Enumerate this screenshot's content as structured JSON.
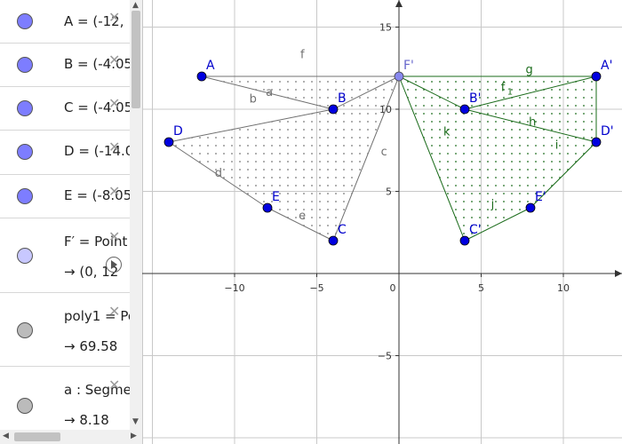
{
  "algebra": {
    "items": [
      {
        "name": "A",
        "text": "A = (-12,",
        "color": "#7d7dff",
        "kind": "point"
      },
      {
        "name": "B",
        "text": "B = (-4.05",
        "color": "#7d7dff",
        "kind": "point"
      },
      {
        "name": "C",
        "text": "C = (-4.05",
        "color": "#7d7dff",
        "kind": "point"
      },
      {
        "name": "D",
        "text": "D = (-14.0",
        "color": "#7d7dff",
        "kind": "point"
      },
      {
        "name": "E",
        "text": "E = (-8.05",
        "color": "#7d7dff",
        "kind": "point"
      },
      {
        "name": "F'",
        "text": "F′ = Point",
        "sub": "→  (0, 12",
        "color": "#c8c8ff",
        "kind": "dependent"
      },
      {
        "name": "poly1",
        "text": "poly1 = Po",
        "sub": "→  69.58",
        "color": "#bbbbbb",
        "kind": "dependent"
      },
      {
        "name": "a",
        "text": "a : Segmen",
        "sub": "→  8.18",
        "color": "#bbbbbb",
        "kind": "dependent"
      }
    ]
  },
  "graphics": {
    "axis_ticks_x": [
      "−10",
      "−5",
      "0",
      "5",
      "10"
    ],
    "axis_ticks_y": [
      "15",
      "10",
      "5",
      "−5"
    ],
    "original_color": "#707070",
    "image_color": "#1a6b1a",
    "point_color": "#0000e0",
    "center_color": "#8888ee"
  },
  "points": [
    {
      "label": "A",
      "x": -12,
      "y": 12
    },
    {
      "label": "B",
      "x": -4,
      "y": 10
    },
    {
      "label": "C",
      "x": -4,
      "y": 2
    },
    {
      "label": "D",
      "x": -14,
      "y": 8
    },
    {
      "label": "E",
      "x": -8,
      "y": 4
    }
  ],
  "image_points": [
    {
      "label": "A'",
      "x": 12,
      "y": 12
    },
    {
      "label": "B'",
      "x": 4,
      "y": 10
    },
    {
      "label": "C'",
      "x": 4,
      "y": 2
    },
    {
      "label": "D'",
      "x": 12,
      "y": 8
    },
    {
      "label": "E'",
      "x": 8,
      "y": 4
    }
  ],
  "center": {
    "label": "F'",
    "x": 0,
    "y": 12
  },
  "segment_labels_original": [
    {
      "text": "f",
      "x": -6,
      "y": 13.1
    },
    {
      "text": "a",
      "x": -8.1,
      "y": 10.8
    },
    {
      "text": "b",
      "x": -9.1,
      "y": 10.4
    },
    {
      "text": "c",
      "x": -1.1,
      "y": 7.2
    },
    {
      "text": "d",
      "x": -11.2,
      "y": 5.9
    },
    {
      "text": "e",
      "x": -6.1,
      "y": 3.3
    }
  ],
  "segment_labels_image": [
    {
      "text": "g",
      "x": 7.7,
      "y": 12.2
    },
    {
      "text": "f",
      "x": 6.2,
      "y": 11.1,
      "sub": "1"
    },
    {
      "text": "h",
      "x": 7.9,
      "y": 9.0
    },
    {
      "text": "k",
      "x": 2.7,
      "y": 8.4
    },
    {
      "text": "i",
      "x": 9.5,
      "y": 7.6
    },
    {
      "text": "j",
      "x": 5.6,
      "y": 4.0
    }
  ]
}
